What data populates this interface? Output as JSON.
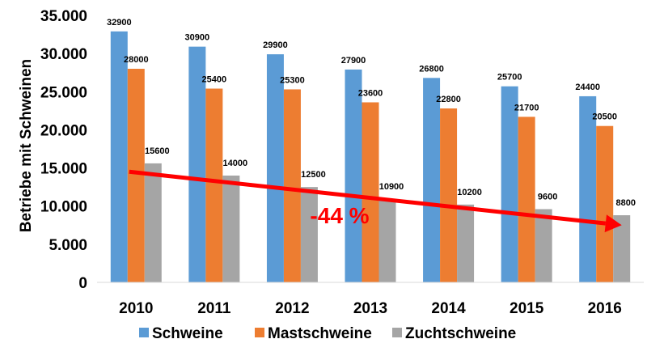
{
  "chart_data": {
    "type": "bar",
    "title": "",
    "xlabel": "",
    "ylabel": "Betriebe mit Schweinen",
    "categories": [
      "2010",
      "2011",
      "2012",
      "2013",
      "2014",
      "2015",
      "2016"
    ],
    "ylim": [
      0,
      35000
    ],
    "yticks": [
      0,
      5000,
      10000,
      15000,
      20000,
      25000,
      30000,
      35000
    ],
    "ytick_labels": [
      "0",
      "5.000",
      "10.000",
      "15.000",
      "20.000",
      "25.000",
      "30.000",
      "35.000"
    ],
    "grid": false,
    "legend_position": "bottom",
    "series": [
      {
        "name": "Schweine",
        "color": "#5b9bd5",
        "values": [
          32900,
          30900,
          29900,
          27900,
          26800,
          25700,
          24400
        ]
      },
      {
        "name": "Mastschweine",
        "color": "#ed7d31",
        "values": [
          28000,
          25400,
          25300,
          23600,
          22800,
          21700,
          20500
        ]
      },
      {
        "name": "Zuchtschweine",
        "color": "#a5a5a5",
        "values": [
          15600,
          14000,
          12500,
          10900,
          10200,
          9600,
          8800
        ]
      }
    ],
    "annotation": {
      "text": "-44 %",
      "color": "#ff0000",
      "arrow_from": {
        "category": "2010",
        "value": 14500
      },
      "arrow_to": {
        "category": "2016",
        "value": 7500
      }
    }
  }
}
